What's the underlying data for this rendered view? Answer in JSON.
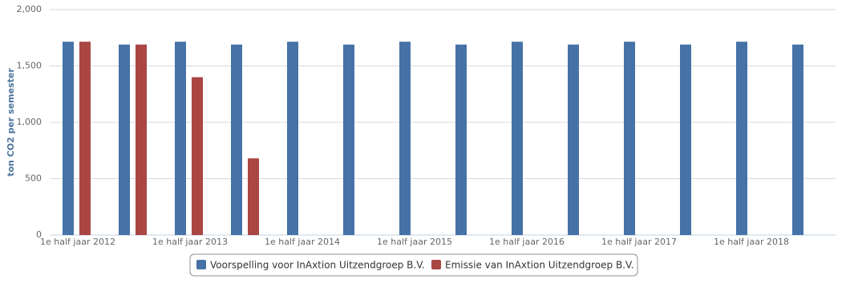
{
  "chart_data": {
    "type": "bar",
    "y_label": "ton CO2 per semester",
    "categories": [
      "1e half jaar 2012",
      null,
      "1e half jaar 2013",
      null,
      "1e half jaar 2014",
      null,
      "1e half jaar 2015",
      null,
      "1e half jaar 2016",
      null,
      "1e half jaar 2017",
      null,
      "1e half jaar 2018",
      null
    ],
    "series": [
      {
        "name": "Voorspelling voor InAxtion Uitzendgroep B.V.",
        "color": "#4572A7",
        "values": [
          1715,
          1690,
          1715,
          1690,
          1715,
          1690,
          1715,
          1690,
          1715,
          1690,
          1715,
          1690,
          1715,
          1690
        ]
      },
      {
        "name": "Emissie van InAxtion Uitzendgroep B.V.",
        "color": "#AA4643",
        "values": [
          1715,
          1690,
          1400,
          680,
          null,
          null,
          null,
          null,
          null,
          null,
          null,
          null,
          null,
          null
        ]
      }
    ],
    "ylim": [
      0,
      2000
    ],
    "yticks": [
      0,
      500,
      {
        "value": 1000,
        "label": "1,000"
      },
      {
        "value": 1500,
        "label": "1,500"
      },
      {
        "value": 2000,
        "label": "2,000"
      }
    ],
    "grid": true
  }
}
